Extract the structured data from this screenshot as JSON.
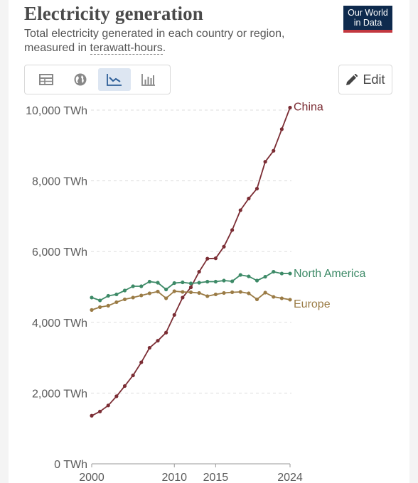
{
  "header": {
    "title": "Electricity generation",
    "subtitle_prefix": "Total electricity generated in each country or region, measured in ",
    "subtitle_term": "terawatt-hours",
    "subtitle_suffix": "."
  },
  "logo": {
    "line1": "Our World",
    "line2": "in Data"
  },
  "toolbar": {
    "tools": [
      {
        "icon": "table-icon",
        "active": false
      },
      {
        "icon": "globe-icon",
        "active": false
      },
      {
        "icon": "line-chart-icon",
        "active": true
      },
      {
        "icon": "bar-chart-icon",
        "active": false
      }
    ],
    "edit_label": "Edit"
  },
  "colors": {
    "accent": "#dde6f2",
    "logo_bg": "#0e2a4d",
    "logo_stripe": "#c2373f"
  },
  "chart_data": {
    "type": "line",
    "title": "Electricity generation",
    "ylabel": "",
    "xlabel": "",
    "ylim": [
      0,
      10000
    ],
    "xlim": [
      2000,
      2024
    ],
    "y_ticks": [
      0,
      2000,
      4000,
      6000,
      8000,
      10000
    ],
    "y_tick_labels": [
      "0 TWh",
      "2,000 TWh",
      "4,000 TWh",
      "6,000 TWh",
      "8,000 TWh",
      "10,000 TWh"
    ],
    "x_ticks": [
      2000,
      2010,
      2015,
      2024
    ],
    "x_tick_labels": [
      "2000",
      "2010",
      "2015",
      "2024"
    ],
    "grid": "horizontal-dashed",
    "legend": "inline at line ends",
    "x": [
      2000,
      2001,
      2002,
      2003,
      2004,
      2005,
      2006,
      2007,
      2008,
      2009,
      2010,
      2011,
      2012,
      2013,
      2014,
      2015,
      2016,
      2017,
      2018,
      2019,
      2020,
      2021,
      2022,
      2023,
      2024
    ],
    "series": [
      {
        "name": "China",
        "color": "#7b2d34",
        "values": [
          1360,
          1480,
          1650,
          1910,
          2200,
          2500,
          2870,
          3280,
          3480,
          3710,
          4210,
          4700,
          4990,
          5430,
          5800,
          5810,
          6140,
          6610,
          7170,
          7500,
          7780,
          8540,
          8850,
          9460,
          10070
        ]
      },
      {
        "name": "North America",
        "color": "#3d8a67",
        "values": [
          4700,
          4620,
          4750,
          4790,
          4900,
          5020,
          5020,
          5150,
          5120,
          4930,
          5110,
          5130,
          5100,
          5120,
          5150,
          5150,
          5180,
          5160,
          5340,
          5300,
          5180,
          5290,
          5430,
          5380,
          5380
        ]
      },
      {
        "name": "Europe",
        "color": "#9a7b45",
        "values": [
          4350,
          4430,
          4470,
          4570,
          4650,
          4700,
          4760,
          4820,
          4870,
          4680,
          4880,
          4860,
          4850,
          4830,
          4740,
          4790,
          4830,
          4850,
          4860,
          4820,
          4650,
          4840,
          4720,
          4680,
          4640
        ]
      }
    ]
  }
}
